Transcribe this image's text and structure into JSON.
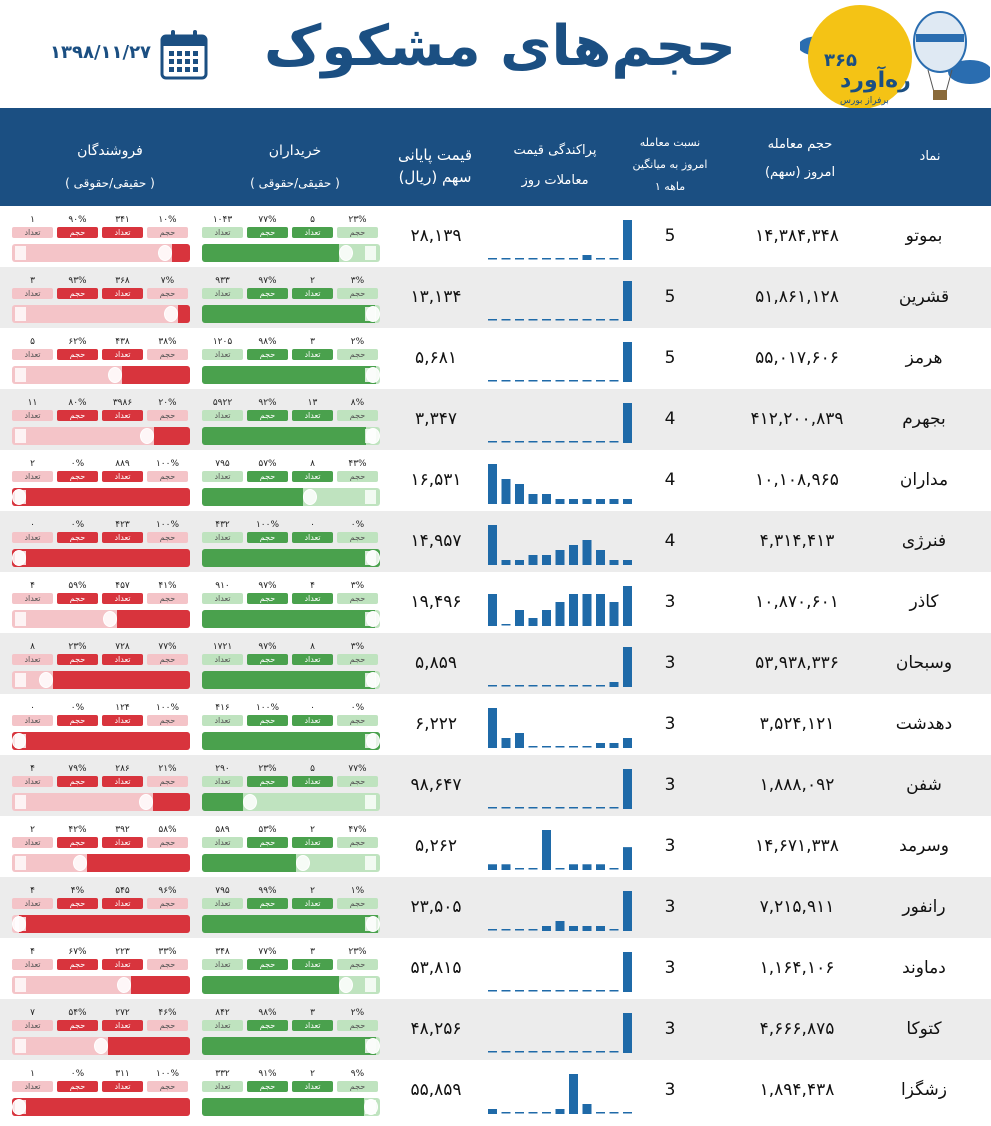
{
  "header": {
    "title": "حجم‌های مشکوک",
    "date": "۱۳۹۸/۱۱/۲۷",
    "logo_num": "۳۶۵",
    "logo_name": "ره‌آورد",
    "logo_sub": "برفراز بورس"
  },
  "columns": {
    "symbol": "نماد",
    "volume": [
      "حجم معامله",
      "امروز (سهم)"
    ],
    "ratio": [
      "نسبت معامله",
      "امروز به میانگین",
      "۱ ماهه"
    ],
    "spread": [
      "پراکندگی قیمت",
      "معاملات روز"
    ],
    "price": [
      "قیمت پایانی",
      "سهم (ریال)"
    ],
    "buyers": [
      "خریداران",
      "( حقیقی/حقوقی )"
    ],
    "sellers": [
      "فروشندگان",
      "( حقیقی/حقوقی )"
    ]
  },
  "tags": {
    "volume": "حجم",
    "count": "تعداد"
  },
  "colors": {
    "header": "#1b4f82",
    "buy_dark": "#4aa14d",
    "buy_light": "#bfe3bf",
    "sell_dark": "#d8343d",
    "sell_light": "#f4c4c8",
    "hist": "#1f6aa8"
  },
  "rows": [
    {
      "symbol": "بموتو",
      "volume": "۱۴,۳۸۴,۳۴۸",
      "ratio": "5",
      "price": "۲۸,۱۳۹",
      "hist": [
        0,
        0,
        0,
        0,
        0,
        0,
        0,
        1,
        0,
        0,
        8
      ],
      "buy": {
        "rh_pct": "۲۳%",
        "rh_cnt": "۵",
        "vol_pct": "۷۷%",
        "cnt": "۱۰۴۳",
        "fill": 0.77
      },
      "sell": {
        "rh_pct": "۱۰%",
        "rh_cnt": "۳۴۱",
        "vol_pct": "۹۰%",
        "cnt": "۱",
        "fill": 0.1
      }
    },
    {
      "symbol": "قشرین",
      "volume": "۵۱,۸۶۱,۱۲۸",
      "ratio": "5",
      "price": "۱۳,۱۳۴",
      "hist": [
        0,
        0,
        0,
        0,
        0,
        0,
        0,
        0,
        0,
        0,
        8
      ],
      "buy": {
        "rh_pct": "۳%",
        "rh_cnt": "۲",
        "vol_pct": "۹۷%",
        "cnt": "۹۳۳",
        "fill": 0.97
      },
      "sell": {
        "rh_pct": "۷%",
        "rh_cnt": "۳۶۸",
        "vol_pct": "۹۳%",
        "cnt": "۳",
        "fill": 0.07
      }
    },
    {
      "symbol": "هرمز",
      "volume": "۵۵,۰۱۷,۶۰۶",
      "ratio": "5",
      "price": "۵,۶۸۱",
      "hist": [
        0,
        0,
        0,
        0,
        0,
        0,
        0,
        0,
        0,
        0,
        8
      ],
      "buy": {
        "rh_pct": "۲%",
        "rh_cnt": "۳",
        "vol_pct": "۹۸%",
        "cnt": "۱۲۰۵",
        "fill": 0.98
      },
      "sell": {
        "rh_pct": "۳۸%",
        "rh_cnt": "۴۳۸",
        "vol_pct": "۶۲%",
        "cnt": "۵",
        "fill": 0.38
      }
    },
    {
      "symbol": "بجهرم",
      "volume": "۴۱۲,۲۰۰,۸۳۹",
      "ratio": "4",
      "price": "۳,۳۴۷",
      "hist": [
        0,
        0,
        0,
        0,
        0,
        0,
        0,
        0,
        0,
        0,
        8
      ],
      "buy": {
        "rh_pct": "۸%",
        "rh_cnt": "۱۳",
        "vol_pct": "۹۲%",
        "cnt": "۵۹۲۲",
        "fill": 0.92
      },
      "sell": {
        "rh_pct": "۲۰%",
        "rh_cnt": "۳۹۸۶",
        "vol_pct": "۸۰%",
        "cnt": "۱۱",
        "fill": 0.2
      }
    },
    {
      "symbol": "مداران",
      "volume": "۱۰,۱۰۸,۹۶۵",
      "ratio": "4",
      "price": "۱۶,۵۳۱",
      "hist": [
        8,
        5,
        4,
        2,
        2,
        1,
        1,
        1,
        1,
        1,
        1
      ],
      "buy": {
        "rh_pct": "۴۳%",
        "rh_cnt": "۸",
        "vol_pct": "۵۷%",
        "cnt": "۷۹۵",
        "fill": 0.57
      },
      "sell": {
        "rh_pct": "۱۰۰%",
        "rh_cnt": "۸۸۹",
        "vol_pct": "۰%",
        "cnt": "۲",
        "fill": 1.0
      }
    },
    {
      "symbol": "فنرژی",
      "volume": "۴,۳۱۴,۴۱۳",
      "ratio": "4",
      "price": "۱۴,۹۵۷",
      "hist": [
        8,
        1,
        1,
        2,
        2,
        3,
        4,
        5,
        3,
        1,
        1
      ],
      "buy": {
        "rh_pct": "۰%",
        "rh_cnt": "۰",
        "vol_pct": "۱۰۰%",
        "cnt": "۴۳۲",
        "fill": 1.0
      },
      "sell": {
        "rh_pct": "۱۰۰%",
        "rh_cnt": "۴۲۳",
        "vol_pct": "۰%",
        "cnt": "۰",
        "fill": 1.0
      }
    },
    {
      "symbol": "کاذر",
      "volume": "۱۰,۸۷۰,۶۰۱",
      "ratio": "3",
      "price": "۱۹,۴۹۶",
      "hist": [
        4,
        0,
        2,
        1,
        2,
        3,
        4,
        4,
        4,
        3,
        5
      ],
      "buy": {
        "rh_pct": "۳%",
        "rh_cnt": "۴",
        "vol_pct": "۹۷%",
        "cnt": "۹۱۰",
        "fill": 0.97
      },
      "sell": {
        "rh_pct": "۴۱%",
        "rh_cnt": "۴۵۷",
        "vol_pct": "۵۹%",
        "cnt": "۴",
        "fill": 0.41
      }
    },
    {
      "symbol": "وسبحان",
      "volume": "۵۳,۹۳۸,۳۳۶",
      "ratio": "3",
      "price": "۵,۸۵۹",
      "hist": [
        0,
        0,
        0,
        0,
        0,
        0,
        0,
        0,
        0,
        1,
        8
      ],
      "buy": {
        "rh_pct": "۳%",
        "rh_cnt": "۸",
        "vol_pct": "۹۷%",
        "cnt": "۱۷۲۱",
        "fill": 0.97
      },
      "sell": {
        "rh_pct": "۷۷%",
        "rh_cnt": "۷۲۸",
        "vol_pct": "۲۳%",
        "cnt": "۸",
        "fill": 0.77
      }
    },
    {
      "symbol": "دهدشت",
      "volume": "۳,۵۲۴,۱۲۱",
      "ratio": "3",
      "price": "۶,۲۲۲",
      "hist": [
        8,
        2,
        3,
        0,
        0,
        0,
        0,
        0,
        1,
        1,
        2
      ],
      "buy": {
        "rh_pct": "۰%",
        "rh_cnt": "۰",
        "vol_pct": "۱۰۰%",
        "cnt": "۴۱۶",
        "fill": 1.0
      },
      "sell": {
        "rh_pct": "۱۰۰%",
        "rh_cnt": "۱۲۴",
        "vol_pct": "۰%",
        "cnt": "۰",
        "fill": 1.0
      }
    },
    {
      "symbol": "شفن",
      "volume": "۱,۸۸۸,۰۹۲",
      "ratio": "3",
      "price": "۹۸,۶۴۷",
      "hist": [
        0,
        0,
        0,
        0,
        0,
        0,
        0,
        0,
        0,
        0,
        8
      ],
      "buy": {
        "rh_pct": "۷۷%",
        "rh_cnt": "۵",
        "vol_pct": "۲۳%",
        "cnt": "۲۹۰",
        "fill": 0.23
      },
      "sell": {
        "rh_pct": "۲۱%",
        "rh_cnt": "۲۸۶",
        "vol_pct": "۷۹%",
        "cnt": "۴",
        "fill": 0.21
      }
    },
    {
      "symbol": "وسرمد",
      "volume": "۱۴,۶۷۱,۳۳۸",
      "ratio": "3",
      "price": "۵,۲۶۲",
      "hist": [
        1,
        1,
        0,
        0,
        7,
        0,
        1,
        1,
        1,
        0,
        4
      ],
      "buy": {
        "rh_pct": "۴۷%",
        "rh_cnt": "۲",
        "vol_pct": "۵۳%",
        "cnt": "۵۸۹",
        "fill": 0.53
      },
      "sell": {
        "rh_pct": "۵۸%",
        "rh_cnt": "۳۹۲",
        "vol_pct": "۴۲%",
        "cnt": "۲",
        "fill": 0.58
      }
    },
    {
      "symbol": "رانفور",
      "volume": "۷,۲۱۵,۹۱۱",
      "ratio": "3",
      "price": "۲۳,۵۰۵",
      "hist": [
        0,
        0,
        0,
        0,
        1,
        2,
        1,
        1,
        1,
        0,
        8
      ],
      "buy": {
        "rh_pct": "۱%",
        "rh_cnt": "۲",
        "vol_pct": "۹۹%",
        "cnt": "۷۹۵",
        "fill": 0.99
      },
      "sell": {
        "rh_pct": "۹۶%",
        "rh_cnt": "۵۴۵",
        "vol_pct": "۴%",
        "cnt": "۴",
        "fill": 0.96
      }
    },
    {
      "symbol": "دماوند",
      "volume": "۱,۱۶۴,۱۰۶",
      "ratio": "3",
      "price": "۵۳,۸۱۵",
      "hist": [
        0,
        0,
        0,
        0,
        0,
        0,
        0,
        0,
        0,
        0,
        6
      ],
      "buy": {
        "rh_pct": "۲۳%",
        "rh_cnt": "۳",
        "vol_pct": "۷۷%",
        "cnt": "۳۴۸",
        "fill": 0.77
      },
      "sell": {
        "rh_pct": "۳۳%",
        "rh_cnt": "۲۲۳",
        "vol_pct": "۶۷%",
        "cnt": "۴",
        "fill": 0.33
      }
    },
    {
      "symbol": "کتوکا",
      "volume": "۴,۶۶۶,۸۷۵",
      "ratio": "3",
      "price": "۴۸,۲۵۶",
      "hist": [
        0,
        0,
        0,
        0,
        0,
        0,
        0,
        0,
        0,
        0,
        8
      ],
      "buy": {
        "rh_pct": "۲%",
        "rh_cnt": "۳",
        "vol_pct": "۹۸%",
        "cnt": "۸۴۲",
        "fill": 0.98
      },
      "sell": {
        "rh_pct": "۴۶%",
        "rh_cnt": "۲۷۲",
        "vol_pct": "۵۴%",
        "cnt": "۷",
        "fill": 0.46
      }
    },
    {
      "symbol": "زشگزا",
      "volume": "۱,۸۹۴,۴۳۸",
      "ratio": "3",
      "price": "۵۵,۸۵۹",
      "hist": [
        1,
        0,
        0,
        0,
        0,
        1,
        8,
        2,
        0,
        0,
        0
      ],
      "buy": {
        "rh_pct": "۹%",
        "rh_cnt": "۲",
        "vol_pct": "۹۱%",
        "cnt": "۳۳۲",
        "fill": 0.91
      },
      "sell": {
        "rh_pct": "۱۰۰%",
        "rh_cnt": "۳۱۱",
        "vol_pct": "۰%",
        "cnt": "۱",
        "fill": 1.0
      }
    }
  ]
}
